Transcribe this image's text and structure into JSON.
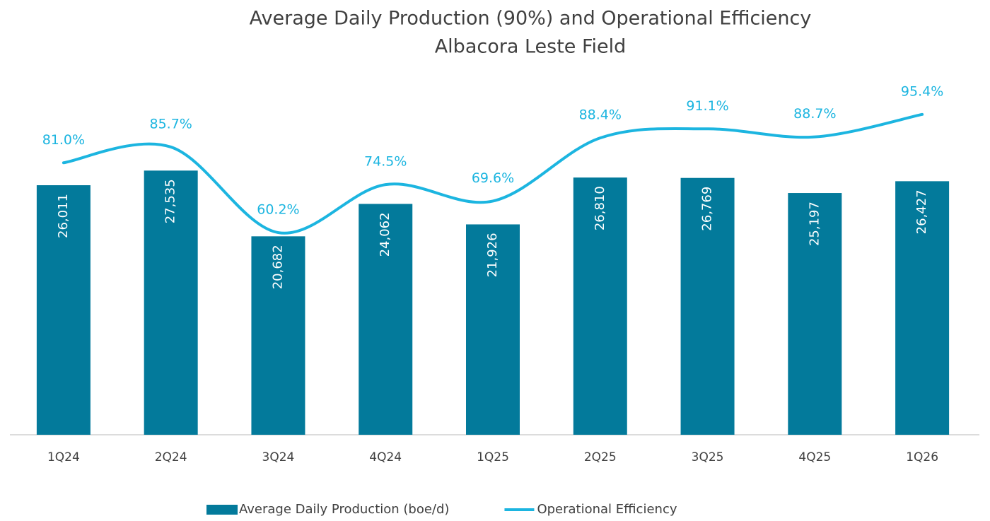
{
  "chart_data": {
    "type": "bar",
    "title": "Average Daily Production (90%) and Operational Efficiency",
    "subtitle": "Albacora Leste Field",
    "categories": [
      "1Q24",
      "2Q24",
      "3Q24",
      "4Q24",
      "1Q25",
      "2Q25",
      "3Q25",
      "4Q25",
      "1Q26"
    ],
    "series": [
      {
        "name": "Average Daily Production (boe/d)",
        "type": "bar",
        "color": "#037a9b",
        "values": [
          26011,
          27535,
          20682,
          24062,
          21926,
          26810,
          26769,
          25197,
          26427
        ],
        "value_labels": [
          "26,011",
          "27,535",
          "20,682",
          "24,062",
          "21,926",
          "26,810",
          "26,769",
          "25,197",
          "26,427"
        ]
      },
      {
        "name": "Operational Efficiency",
        "type": "line",
        "axis": "y2",
        "color": "#1cb5e0",
        "values": [
          81.0,
          85.7,
          60.2,
          74.5,
          69.6,
          88.4,
          91.1,
          88.7,
          95.4
        ],
        "value_labels": [
          "81.0%",
          "85.7%",
          "60.2%",
          "74.5%",
          "69.6%",
          "88.4%",
          "91.1%",
          "88.7%",
          "95.4%"
        ]
      }
    ],
    "ylim": [
      0,
      35000
    ],
    "y2lim": [
      0,
      100
    ],
    "legend": "bottom"
  }
}
